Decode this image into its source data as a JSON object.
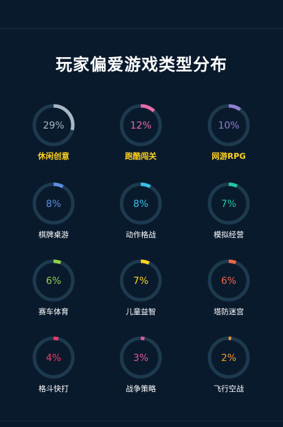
{
  "title": "玩家偏爱游戏类型分布",
  "colors": {
    "background": "#0a1a2d",
    "track": "#1d3a4f",
    "highlight_label": "#ffd21f",
    "normal_label": "#ffffff"
  },
  "chart_data": {
    "type": "pie",
    "style": "donut-grid",
    "title": "玩家偏爱游戏类型分布",
    "unit": "%",
    "items": [
      {
        "name": "休闲创意",
        "value": 29,
        "label": "29%",
        "color": "#aab8c6",
        "highlight": true
      },
      {
        "name": "跑酷闯关",
        "value": 12,
        "label": "12%",
        "color": "#e86aa6",
        "highlight": true
      },
      {
        "name": "网游RPG",
        "value": 10,
        "label": "10%",
        "color": "#8f7fd0",
        "highlight": true
      },
      {
        "name": "棋牌桌游",
        "value": 8,
        "label": "8%",
        "color": "#5b8fe0",
        "highlight": false
      },
      {
        "name": "动作格战",
        "value": 8,
        "label": "8%",
        "color": "#35c2e8",
        "highlight": false
      },
      {
        "name": "模拟经营",
        "value": 7,
        "label": "7%",
        "color": "#1fc9a5",
        "highlight": false
      },
      {
        "name": "赛车体育",
        "value": 6,
        "label": "6%",
        "color": "#8fd24a",
        "highlight": false
      },
      {
        "name": "儿童益智",
        "value": 7,
        "label": "7%",
        "color": "#ffd21f",
        "highlight": false
      },
      {
        "name": "塔防迷宫",
        "value": 6,
        "label": "6%",
        "color": "#f26546",
        "highlight": false
      },
      {
        "name": "格斗快打",
        "value": 4,
        "label": "4%",
        "color": "#ee3c64",
        "highlight": false
      },
      {
        "name": "战争策略",
        "value": 3,
        "label": "3%",
        "color": "#e0589a",
        "highlight": false
      },
      {
        "name": "飞行空战",
        "value": 2,
        "label": "2%",
        "color": "#f79a2a",
        "highlight": false
      }
    ]
  }
}
